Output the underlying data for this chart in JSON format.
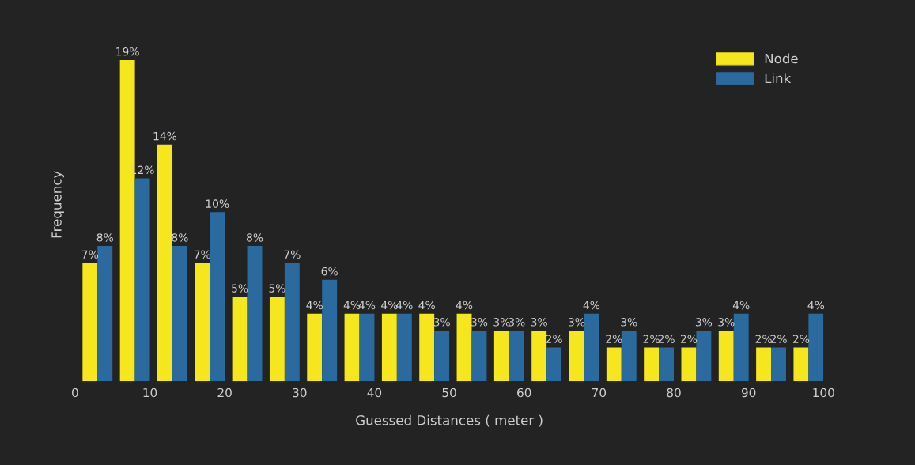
{
  "chart_data": {
    "type": "bar",
    "xlabel": "Guessed Distances ( meter )",
    "ylabel": "Frequency",
    "xlim": [
      0,
      100
    ],
    "xticks": [
      0,
      10,
      20,
      30,
      40,
      50,
      60,
      70,
      80,
      90,
      100
    ],
    "tick_labels": "x",
    "grid": false,
    "legend": "top right",
    "series": [
      {
        "name": "Node",
        "color": "#f5e61e",
        "x": [
          2,
          7,
          12,
          17,
          22,
          27,
          32,
          37,
          42,
          47,
          52,
          57,
          62,
          67,
          72,
          77,
          82,
          87,
          92,
          97
        ],
        "values": [
          7,
          19,
          14,
          7,
          5,
          5,
          4,
          4,
          4,
          4,
          4,
          3,
          3,
          3,
          2,
          2,
          2,
          3,
          2,
          2
        ],
        "value_labels": [
          "7%",
          "19%",
          "14%",
          "7%",
          "5%",
          "5%",
          "4%",
          "4%",
          "4%",
          "4%",
          "4%",
          "3%",
          "3%",
          "3%",
          "2%",
          "2%",
          "2%",
          "3%",
          "2%",
          "2%"
        ]
      },
      {
        "name": "Link",
        "color": "#2a6a9e",
        "x": [
          4,
          9,
          14,
          19,
          24,
          29,
          34,
          39,
          44,
          49,
          54,
          59,
          64,
          69,
          74,
          79,
          84,
          89,
          94,
          99
        ],
        "values": [
          8,
          12,
          8,
          10,
          8,
          7,
          6,
          4,
          4,
          3,
          3,
          3,
          2,
          4,
          3,
          2,
          3,
          4,
          2,
          4
        ],
        "value_labels": [
          "8%",
          "12%",
          "8%",
          "10%",
          "8%",
          "7%",
          "6%",
          "4%",
          "4%",
          "3%",
          "3%",
          "3%",
          "2%",
          "4%",
          "3%",
          "2%",
          "3%",
          "4%",
          "2%",
          "4%"
        ]
      }
    ]
  }
}
